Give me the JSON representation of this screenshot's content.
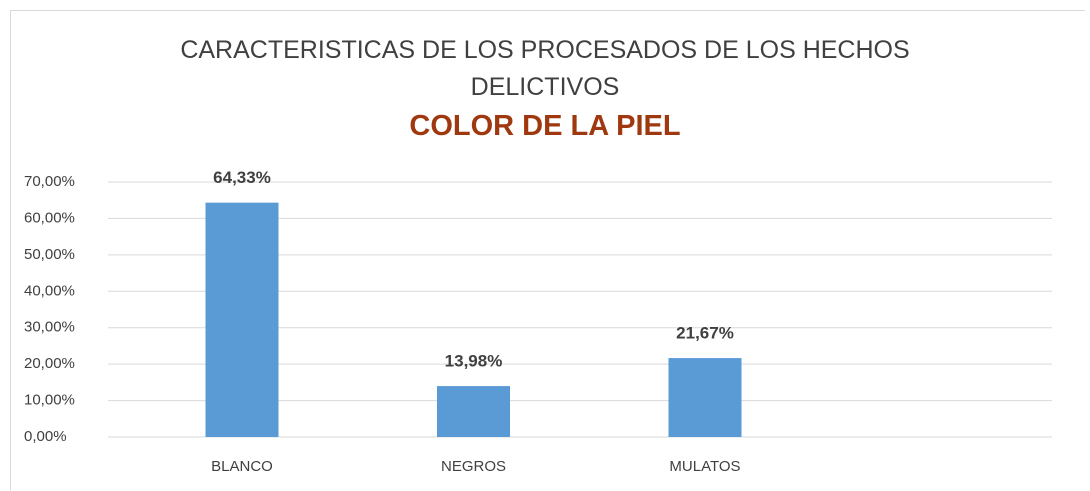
{
  "chart_data": {
    "type": "bar",
    "title": "CARACTERISTICAS DE LOS PROCESADOS DE LOS HECHOS DELICTIVOS",
    "subtitle": "COLOR DE LA PIEL",
    "categories": [
      "BLANCO",
      "NEGROS",
      "MULATOS"
    ],
    "values": [
      64.33,
      13.98,
      21.67
    ],
    "value_labels": [
      "64,33%",
      "13,98%",
      "21,67%"
    ],
    "color": "#5b9bd5",
    "ylim": [
      0,
      70
    ],
    "yticks": [
      {
        "value": 0,
        "label": "0,00%"
      },
      {
        "value": 10,
        "label": "10,00%"
      },
      {
        "value": 20,
        "label": "20,00%"
      },
      {
        "value": 30,
        "label": "30,00%"
      },
      {
        "value": 40,
        "label": "40,00%"
      },
      {
        "value": 50,
        "label": "50,00%"
      },
      {
        "value": 60,
        "label": "60,00%"
      },
      {
        "value": 70,
        "label": "70,00%"
      }
    ],
    "grid": true
  }
}
